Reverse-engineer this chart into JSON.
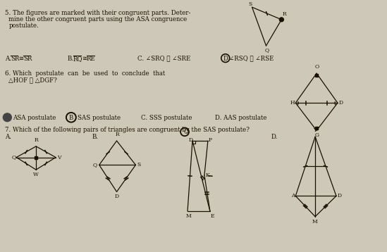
{
  "bg_color": "#cec8b8",
  "text_color": "#1a1000",
  "q5_line1": "5. The figures are marked with their congruent parts. Deter-",
  "q5_line2": "   mine the other congruent parts using the ASA congruence",
  "q5_line3": "   postulate.",
  "q5_a": "A. SR ≅ SR",
  "q5_b": "B. RQ ≅ RE",
  "q5_c": "C. ∠SRQ ≅ ∠SRE",
  "q5_d": "D ∠RSQ ≅ ∠RSE",
  "q6_line1": "6. Which  postulate  can  be  used  to  conclude  that",
  "q6_line2": "   △HOF ≅ △DGF?",
  "q6_a": "ASA postulate",
  "q6_b": "SAS postulate",
  "q6_c": "C. SSS postulate",
  "q6_d": "D. AAS postulate",
  "q7_line": "7. Which of the following pairs of triangles are congruent by the SAS postulate?"
}
